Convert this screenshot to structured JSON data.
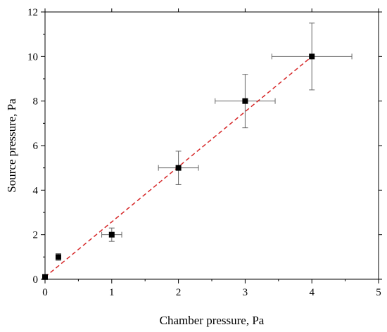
{
  "chart_data": {
    "type": "scatter",
    "xlabel": "Chamber pressure, Pa",
    "ylabel": "Source pressure, Pa",
    "xlim": [
      0,
      5
    ],
    "ylim": [
      0,
      12
    ],
    "xticks": [
      "0",
      "1",
      "2",
      "3",
      "4",
      "5"
    ],
    "yticks": [
      "0",
      "2",
      "4",
      "6",
      "8",
      "10",
      "12"
    ],
    "grid": false,
    "points": [
      {
        "x": 0.0,
        "y": 0.1,
        "xerr": 0.0,
        "yerr": 0.0
      },
      {
        "x": 0.2,
        "y": 1.0,
        "xerr": 0.0,
        "yerr": 0.15
      },
      {
        "x": 1.0,
        "y": 2.0,
        "xerr": 0.15,
        "yerr": 0.3
      },
      {
        "x": 2.0,
        "y": 5.0,
        "xerr": 0.3,
        "yerr": 0.75
      },
      {
        "x": 3.0,
        "y": 8.0,
        "xerr": 0.45,
        "yerr": 1.2
      },
      {
        "x": 4.0,
        "y": 10.0,
        "xerr": 0.6,
        "yerr": 1.5
      }
    ],
    "fit_line": {
      "x": [
        0,
        4
      ],
      "y": [
        0.1,
        10.0
      ],
      "style": "dashed",
      "color": "#d62728"
    },
    "marker_color": "#000000",
    "errorbar_color": "#666666"
  }
}
